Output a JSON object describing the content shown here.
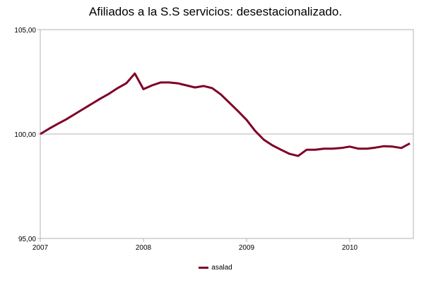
{
  "chart_data": {
    "type": "line",
    "title": "Afiliados a la S.S servicios: desestacionalizado.",
    "xlabel": "",
    "ylabel": "",
    "ylim": [
      95,
      105
    ],
    "yticks": [
      "95,00",
      "100,00",
      "105,00"
    ],
    "ytick_values": [
      95,
      100,
      105
    ],
    "xlim": [
      "2007-01",
      "2010-08"
    ],
    "xticks": [
      "2007",
      "2008",
      "2009",
      "2010"
    ],
    "grid": "horizontal at y ticks",
    "legend": "bottom",
    "colors": {
      "series": "#7f0026",
      "grid": "#b3b3b3"
    },
    "x": [
      "2007-01",
      "2007-02",
      "2007-03",
      "2007-04",
      "2007-05",
      "2007-06",
      "2007-07",
      "2007-08",
      "2007-09",
      "2007-10",
      "2007-11",
      "2007-12",
      "2008-01",
      "2008-02",
      "2008-03",
      "2008-04",
      "2008-05",
      "2008-06",
      "2008-07",
      "2008-08",
      "2008-09",
      "2008-10",
      "2008-11",
      "2008-12",
      "2009-01",
      "2009-02",
      "2009-03",
      "2009-04",
      "2009-05",
      "2009-06",
      "2009-07",
      "2009-08",
      "2009-09",
      "2009-10",
      "2009-11",
      "2009-12",
      "2010-01",
      "2010-02",
      "2010-03",
      "2010-04",
      "2010-05",
      "2010-06",
      "2010-07",
      "2010-08"
    ],
    "series": [
      {
        "name": "asalad",
        "values": [
          100.0,
          100.25,
          100.48,
          100.7,
          100.95,
          101.2,
          101.45,
          101.7,
          101.93,
          102.2,
          102.43,
          102.9,
          102.15,
          102.33,
          102.47,
          102.47,
          102.43,
          102.33,
          102.23,
          102.3,
          102.2,
          101.9,
          101.5,
          101.1,
          100.68,
          100.15,
          99.73,
          99.46,
          99.25,
          99.05,
          98.95,
          99.25,
          99.25,
          99.3,
          99.3,
          99.33,
          99.4,
          99.3,
          99.3,
          99.35,
          99.42,
          99.4,
          99.33,
          99.55
        ]
      }
    ]
  }
}
